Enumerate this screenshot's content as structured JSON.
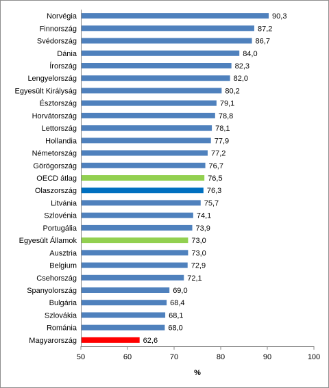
{
  "chart_data": {
    "type": "bar",
    "orientation": "horizontal",
    "categories": [
      "Norvégia",
      "Finnország",
      "Svédország",
      "Dánia",
      "Írország",
      "Lengyelország",
      "Egyesült Királyság",
      "Észtország",
      "Horvátország",
      "Lettország",
      "Hollandia",
      "Németország",
      "Görögország",
      "OECD átlag",
      "Olaszország",
      "Litvánia",
      "Szlovénia",
      "Portugália",
      "Egyesült Államok",
      "Ausztria",
      "Belgium",
      "Csehország",
      "Spanyolország",
      "Bulgária",
      "Szlovákia",
      "Románia",
      "Magyarország"
    ],
    "values": [
      90.3,
      87.2,
      86.7,
      84.0,
      82.3,
      82.0,
      80.2,
      79.1,
      78.8,
      78.1,
      77.9,
      77.2,
      76.7,
      76.5,
      76.3,
      75.7,
      74.1,
      73.9,
      73.0,
      73.0,
      72.9,
      72.1,
      69.0,
      68.4,
      68.1,
      68.0,
      62.6
    ],
    "value_labels": [
      "90,3",
      "87,2",
      "86,7",
      "84,0",
      "82,3",
      "82,0",
      "80,2",
      "79,1",
      "78,8",
      "78,1",
      "77,9",
      "77,2",
      "76,7",
      "76,5",
      "76,3",
      "75,7",
      "74,1",
      "73,9",
      "73,0",
      "73,0",
      "72,9",
      "72,1",
      "69,0",
      "68,4",
      "68,1",
      "68,0",
      "62,6"
    ],
    "bar_colors": [
      "#4f81bd",
      "#4f81bd",
      "#4f81bd",
      "#4f81bd",
      "#4f81bd",
      "#4f81bd",
      "#4f81bd",
      "#4f81bd",
      "#4f81bd",
      "#4f81bd",
      "#4f81bd",
      "#4f81bd",
      "#4f81bd",
      "#92d050",
      "#0070c0",
      "#4f81bd",
      "#4f81bd",
      "#4f81bd",
      "#92d050",
      "#4f81bd",
      "#4f81bd",
      "#4f81bd",
      "#4f81bd",
      "#4f81bd",
      "#4f81bd",
      "#4f81bd",
      "#ff0000"
    ],
    "xticks": [
      50,
      60,
      70,
      80,
      90,
      100
    ],
    "xtick_labels": [
      "50",
      "60",
      "70",
      "80",
      "90",
      "100"
    ],
    "xlim": [
      50,
      100
    ],
    "xlabel": "%",
    "title": "",
    "grid": false,
    "legend": "none"
  }
}
